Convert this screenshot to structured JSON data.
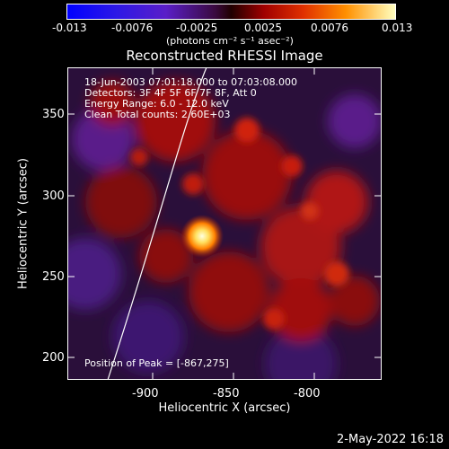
{
  "colorbar": {
    "ticks": [
      "-0.013",
      "-0.0076",
      "-0.0025",
      "0.0025",
      "0.0076",
      "0.013"
    ],
    "units": "(photons cm⁻² s⁻¹ asec⁻²)"
  },
  "plot": {
    "title": "Reconstructed RHESSI Image",
    "info_lines": [
      "18-Jun-2003 07:01:18.000 to 07:03:08.000",
      "Detectors: 3F 4F 5F 6F 7F 8F, Att 0",
      "Energy Range: 6.0 - 12.0 keV",
      "Clean    Total counts: 2.60E+03"
    ],
    "peak_label": "Position of Peak = [-867,275]",
    "xlabel": "Heliocentric X (arcsec)",
    "ylabel": "Heliocentric Y (arcsec)",
    "xticks": [
      "-900",
      "-850",
      "-800"
    ],
    "yticks": [
      "200",
      "250",
      "300",
      "350"
    ]
  },
  "timestamp": "2-May-2022 16:18"
}
